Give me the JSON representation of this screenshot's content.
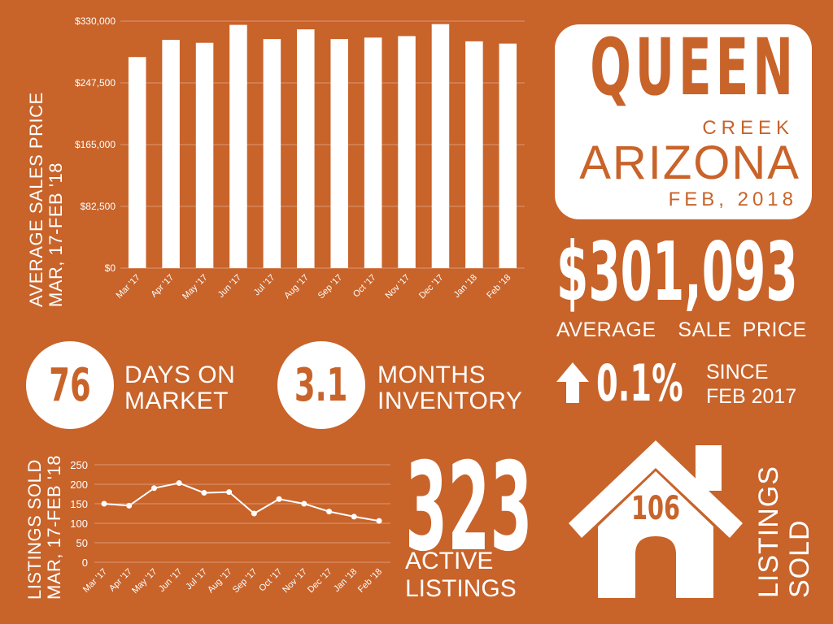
{
  "header": {
    "city": "QUEEN",
    "city_sub": "CREEK",
    "state": "ARIZONA",
    "date": "FEB, 2018"
  },
  "headline": {
    "avg_price": "$301,093",
    "avg_price_caption": "AVERAGE  SALE PRICE"
  },
  "stats": {
    "days_on_market": {
      "value": "76",
      "label_line1": "DAYS ON",
      "label_line2": "MARKET"
    },
    "months_inventory": {
      "value": "3.1",
      "label_line1": "MONTHS",
      "label_line2": "INVENTORY"
    },
    "price_change": {
      "value": "0.1%",
      "label_line1": "SINCE",
      "label_line2": "FEB 2017"
    },
    "active_listings": {
      "value": "323",
      "label_line1": "ACTIVE",
      "label_line2": "LISTINGS"
    },
    "listings_sold": {
      "value": "106",
      "label_line1": "LISTINGS",
      "label_line2": "SOLD"
    }
  },
  "icons": {
    "trend": "arrow-up-icon",
    "house": "house-icon"
  },
  "colors": {
    "background": "#C8632A",
    "foreground": "#FFFFFF"
  },
  "chart_data": [
    {
      "type": "bar",
      "ylabel_line1": "AVERAGE SALES PRICE",
      "ylabel_line2": "MAR, 17-FEB '18",
      "categories": [
        "Mar '17",
        "Apr '17",
        "May '17",
        "Jun '17",
        "Jul '17",
        "Aug '17",
        "Sep '17",
        "Oct '17",
        "Nov '17",
        "Dec '17",
        "Jan '18",
        "Feb '18"
      ],
      "values": [
        282000,
        305000,
        301000,
        325000,
        306000,
        319000,
        306000,
        308000,
        310000,
        326000,
        303000,
        300000
      ],
      "yticks": [
        "$0",
        "$82,500",
        "$165,000",
        "$247,500",
        "$330,000"
      ],
      "ylim": [
        0,
        330000
      ],
      "grid": true
    },
    {
      "type": "line",
      "ylabel_line1": "LISTINGS SOLD",
      "ylabel_line2": "MAR, 17-FEB '18",
      "categories": [
        "Mar '17",
        "Apr '17",
        "May '17",
        "Jun '17",
        "Jul '17",
        "Aug '17",
        "Sep '17",
        "Oct '17",
        "Nov '17",
        "Dec '17",
        "Jan '18",
        "Feb '18"
      ],
      "values": [
        150,
        145,
        190,
        203,
        178,
        180,
        125,
        162,
        150,
        130,
        117,
        106
      ],
      "yticks": [
        "0",
        "50",
        "100",
        "150",
        "200",
        "250"
      ],
      "ylim": [
        0,
        250
      ],
      "grid": true
    }
  ]
}
